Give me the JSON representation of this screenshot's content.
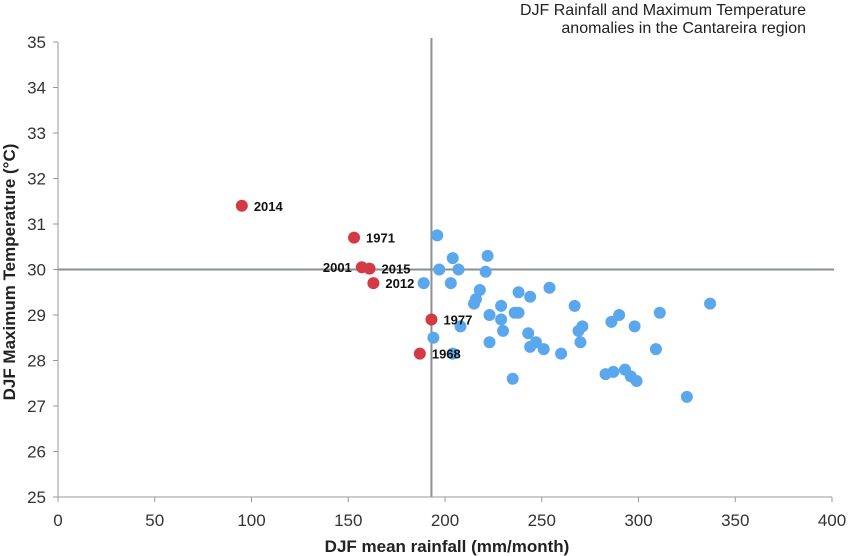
{
  "chart_data": {
    "type": "scatter",
    "title_lines": [
      "DJF Rainfall and Maximum Temperature",
      "anomalies in the Cantareira region"
    ],
    "xlabel": "DJF mean rainfall  (mm/month)",
    "ylabel": "DJF Maximum Temperature (°C)",
    "xlim": [
      0,
      400
    ],
    "ylim": [
      25,
      35
    ],
    "xticks": [
      0,
      50,
      100,
      150,
      200,
      250,
      300,
      350,
      400
    ],
    "yticks": [
      25,
      26,
      27,
      28,
      29,
      30,
      31,
      32,
      33,
      34,
      35
    ],
    "grid": false,
    "reference_lines": {
      "x": 193,
      "y": 30
    },
    "colors": {
      "highlight": "#d33a44",
      "other": "#5aa7ee",
      "reference": "#8a8f8f"
    },
    "highlighted": [
      {
        "year": "2014",
        "x": 95,
        "y": 31.4
      },
      {
        "year": "1971",
        "x": 153,
        "y": 30.7
      },
      {
        "year": "2001",
        "x": 157,
        "y": 30.05
      },
      {
        "year": "2015",
        "x": 161,
        "y": 30.02
      },
      {
        "year": "2012",
        "x": 163,
        "y": 29.7
      },
      {
        "year": "1977",
        "x": 193,
        "y": 28.9
      },
      {
        "year": "1968",
        "x": 187,
        "y": 28.15
      }
    ],
    "other_points": [
      {
        "x": 196,
        "y": 30.75
      },
      {
        "x": 204,
        "y": 30.25
      },
      {
        "x": 222,
        "y": 30.3
      },
      {
        "x": 197,
        "y": 30.0
      },
      {
        "x": 207,
        "y": 30.0
      },
      {
        "x": 221,
        "y": 29.95
      },
      {
        "x": 189,
        "y": 29.7
      },
      {
        "x": 203,
        "y": 29.7
      },
      {
        "x": 218,
        "y": 29.55
      },
      {
        "x": 238,
        "y": 29.5
      },
      {
        "x": 244,
        "y": 29.4
      },
      {
        "x": 254,
        "y": 29.6
      },
      {
        "x": 216,
        "y": 29.35
      },
      {
        "x": 215,
        "y": 29.25
      },
      {
        "x": 229,
        "y": 29.2
      },
      {
        "x": 267,
        "y": 29.2
      },
      {
        "x": 337,
        "y": 29.25
      },
      {
        "x": 223,
        "y": 29.0
      },
      {
        "x": 229,
        "y": 28.9
      },
      {
        "x": 236,
        "y": 29.05
      },
      {
        "x": 238,
        "y": 29.05
      },
      {
        "x": 290,
        "y": 29.0
      },
      {
        "x": 311,
        "y": 29.05
      },
      {
        "x": 286,
        "y": 28.85
      },
      {
        "x": 208,
        "y": 28.75
      },
      {
        "x": 230,
        "y": 28.65
      },
      {
        "x": 243,
        "y": 28.6
      },
      {
        "x": 271,
        "y": 28.75
      },
      {
        "x": 269,
        "y": 28.65
      },
      {
        "x": 298,
        "y": 28.75
      },
      {
        "x": 194,
        "y": 28.5
      },
      {
        "x": 223,
        "y": 28.4
      },
      {
        "x": 244,
        "y": 28.3
      },
      {
        "x": 247,
        "y": 28.4
      },
      {
        "x": 251,
        "y": 28.25
      },
      {
        "x": 270,
        "y": 28.4
      },
      {
        "x": 309,
        "y": 28.25
      },
      {
        "x": 204,
        "y": 28.15
      },
      {
        "x": 260,
        "y": 28.15
      },
      {
        "x": 283,
        "y": 27.7
      },
      {
        "x": 287,
        "y": 27.75
      },
      {
        "x": 293,
        "y": 27.8
      },
      {
        "x": 296,
        "y": 27.65
      },
      {
        "x": 299,
        "y": 27.55
      },
      {
        "x": 235,
        "y": 27.6
      },
      {
        "x": 325,
        "y": 27.2
      }
    ]
  }
}
